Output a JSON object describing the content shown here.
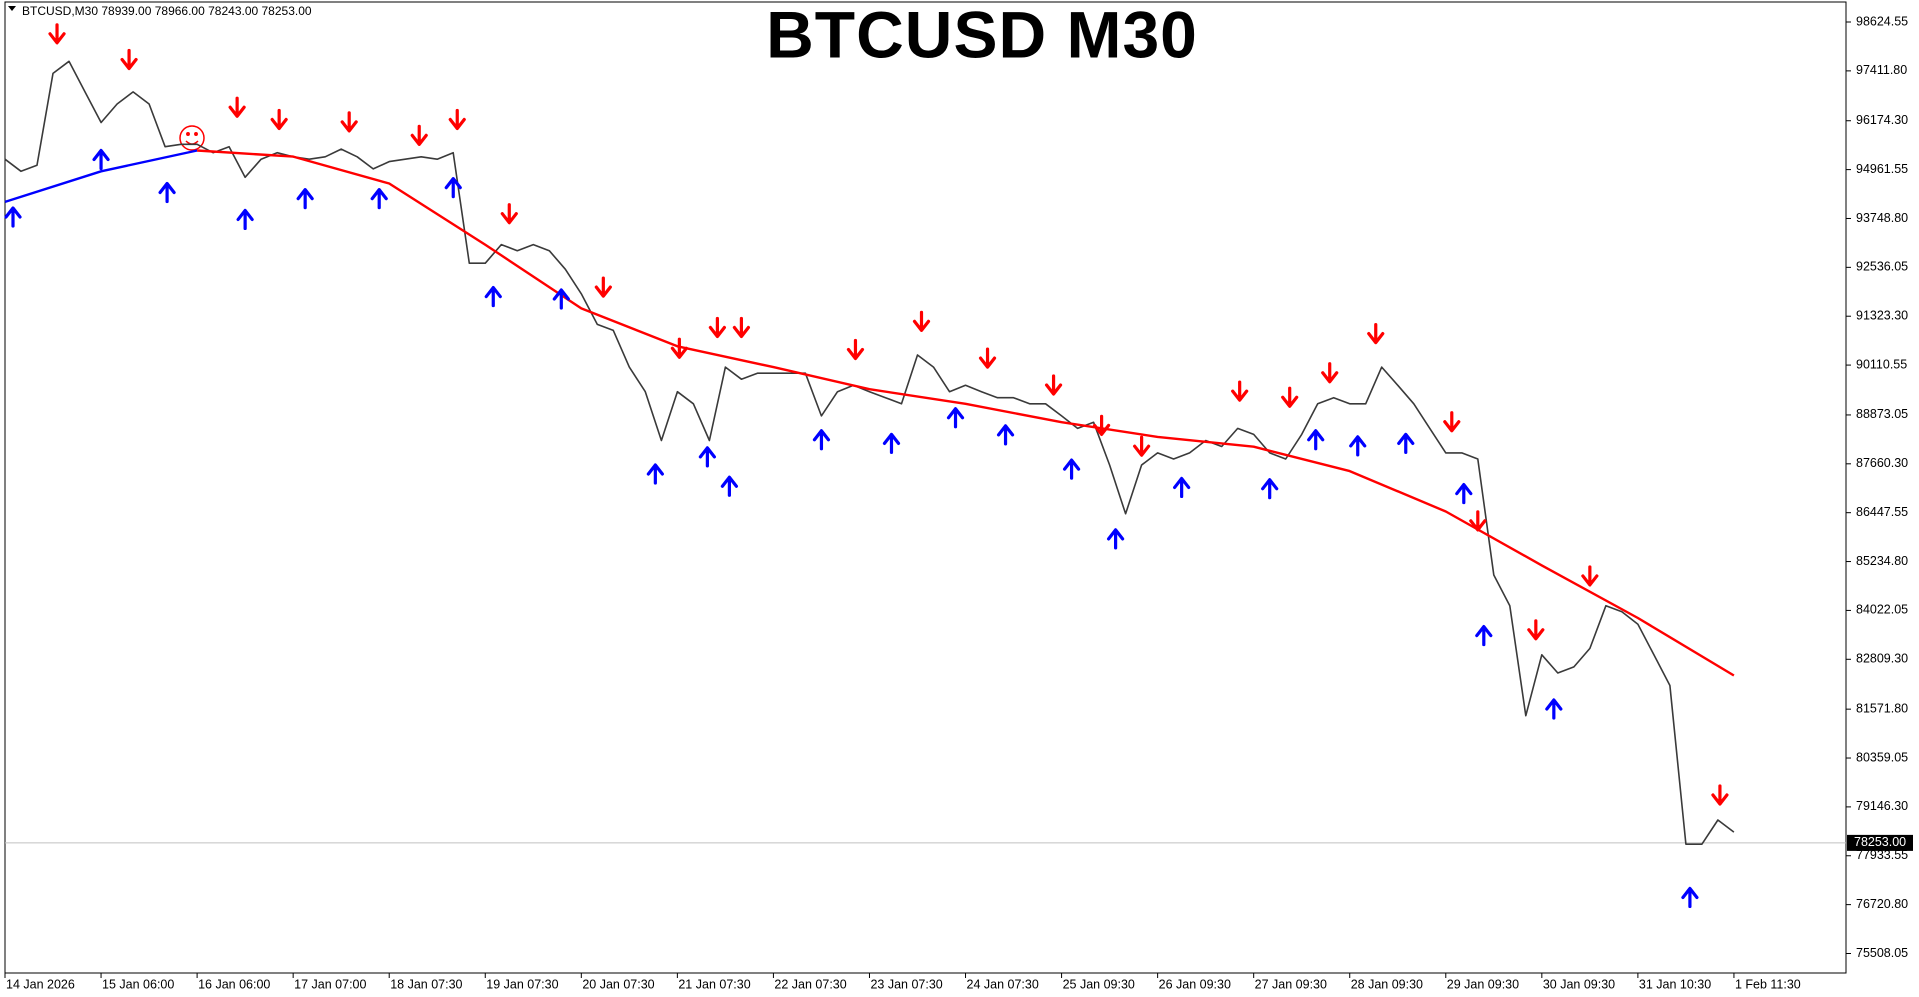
{
  "chart_data": {
    "type": "line",
    "title": "BTCUSD M30",
    "header": "BTCUSD,M30  78939.00 78966.00 78243.00 78253.00",
    "xlim": [
      0,
      920
    ],
    "ylim": [
      75024,
      99121
    ],
    "xticks": [
      {
        "value": 0,
        "label": "14 Jan 2026"
      },
      {
        "value": 48,
        "label": "15 Jan 06:00"
      },
      {
        "value": 96,
        "label": "16 Jan 06:00"
      },
      {
        "value": 144,
        "label": "17 Jan 07:00"
      },
      {
        "value": 192,
        "label": "18 Jan 07:30"
      },
      {
        "value": 240,
        "label": "19 Jan 07:30"
      },
      {
        "value": 288,
        "label": "20 Jan 07:30"
      },
      {
        "value": 336,
        "label": "21 Jan 07:30"
      },
      {
        "value": 384,
        "label": "22 Jan 07:30"
      },
      {
        "value": 432,
        "label": "23 Jan 07:30"
      },
      {
        "value": 480,
        "label": "24 Jan 07:30"
      },
      {
        "value": 528,
        "label": "25 Jan 09:30"
      },
      {
        "value": 576,
        "label": "26 Jan 09:30"
      },
      {
        "value": 624,
        "label": "27 Jan 09:30"
      },
      {
        "value": 672,
        "label": "28 Jan 09:30"
      },
      {
        "value": 720,
        "label": "29 Jan 09:30"
      },
      {
        "value": 768,
        "label": "30 Jan 09:30"
      },
      {
        "value": 816,
        "label": "31 Jan 10:30"
      },
      {
        "value": 864,
        "label": "1 Feb 11:30"
      }
    ],
    "yticks": [
      {
        "value": 98624.55,
        "label": "98624.55"
      },
      {
        "value": 97411.8,
        "label": "97411.80"
      },
      {
        "value": 96174.3,
        "label": "96174.30"
      },
      {
        "value": 94961.55,
        "label": "94961.55"
      },
      {
        "value": 93748.8,
        "label": "93748.80"
      },
      {
        "value": 92536.05,
        "label": "92536.05"
      },
      {
        "value": 91323.3,
        "label": "91323.30"
      },
      {
        "value": 90110.55,
        "label": "90110.55"
      },
      {
        "value": 88873.05,
        "label": "88873.05"
      },
      {
        "value": 87660.3,
        "label": "87660.30"
      },
      {
        "value": 86447.55,
        "label": "86447.55"
      },
      {
        "value": 85234.8,
        "label": "85234.80"
      },
      {
        "value": 84022.05,
        "label": "84022.05"
      },
      {
        "value": 82809.3,
        "label": "82809.30"
      },
      {
        "value": 81571.8,
        "label": "81571.80"
      },
      {
        "value": 80359.05,
        "label": "80359.05"
      },
      {
        "value": 79146.3,
        "label": "79146.30"
      },
      {
        "value": 77933.55,
        "label": "77933.55"
      },
      {
        "value": 76720.8,
        "label": "76720.80"
      },
      {
        "value": 75508.05,
        "label": "75508.05"
      }
    ],
    "current_price": {
      "value": 78253,
      "label": "78253.00"
    },
    "series": [
      {
        "color": "#3a3a3a",
        "width": 1.6,
        "x": [
          0,
          8,
          16,
          24,
          32,
          40,
          48,
          56,
          64,
          72,
          80,
          88,
          96,
          104,
          112,
          120,
          128,
          136,
          144,
          152,
          160,
          168,
          176,
          184,
          192,
          200,
          208,
          216,
          224,
          232,
          240,
          248,
          256,
          264,
          272,
          280,
          288,
          296,
          304,
          312,
          320,
          328,
          336,
          344,
          352,
          360,
          368,
          376,
          384,
          392,
          400,
          408,
          416,
          424,
          432,
          440,
          448,
          456,
          464,
          472,
          480,
          488,
          496,
          504,
          512,
          520,
          528,
          536,
          544,
          552,
          560,
          568,
          576,
          584,
          592,
          600,
          608,
          616,
          624,
          632,
          640,
          648,
          656,
          664,
          672,
          680,
          688,
          696,
          704,
          712,
          720,
          728,
          736,
          744,
          752,
          760,
          768,
          776,
          784,
          792,
          800,
          808,
          816,
          824,
          832,
          840,
          848,
          856,
          864
        ],
        "values": [
          95220,
          94920,
          95070,
          97350,
          97650,
          96890,
          96130,
          96590,
          96890,
          96590,
          95530,
          95590,
          95590,
          95380,
          95530,
          94770,
          95220,
          95380,
          95280,
          95220,
          95280,
          95470,
          95280,
          94980,
          95160,
          95220,
          95280,
          95220,
          95380,
          92640,
          92640,
          93100,
          92950,
          93100,
          92950,
          92490,
          91880,
          91120,
          90970,
          90060,
          89450,
          88240,
          89450,
          89150,
          88240,
          90060,
          89760,
          89910,
          89910,
          89910,
          89910,
          88850,
          89450,
          89610,
          89450,
          89300,
          89150,
          90360,
          90060,
          89450,
          89610,
          89450,
          89300,
          89300,
          89150,
          89150,
          88850,
          88540,
          88690,
          87630,
          86420,
          87630,
          87930,
          87780,
          87930,
          88240,
          88090,
          88540,
          88390,
          87930,
          87780,
          88390,
          89150,
          89300,
          89150,
          89150,
          90060,
          89610,
          89150,
          88540,
          87930,
          87930,
          87780,
          84900,
          84140,
          81410,
          82920,
          82470,
          82620,
          83080,
          84140,
          83990,
          83680,
          82920,
          82160,
          78220,
          78220,
          78820,
          78520
        ]
      },
      {
        "color": "#0000ff",
        "width": 2.4,
        "x": [
          0,
          48,
          96
        ],
        "values": [
          94160,
          94919,
          95436
        ]
      },
      {
        "color": "#ff0000",
        "width": 2.4,
        "x": [
          96,
          144,
          192,
          240,
          288,
          336,
          384,
          432,
          480,
          528,
          576,
          624,
          672,
          720,
          768,
          816,
          864
        ],
        "values": [
          95436,
          95284,
          94616,
          93097,
          91518,
          90577,
          90060,
          89513,
          89149,
          88694,
          88329,
          88086,
          87479,
          86477,
          85140,
          83834,
          82407
        ]
      }
    ],
    "signals": [
      {
        "direction": "down",
        "color": "#ff0000",
        "x": [
          26,
          62,
          116,
          137,
          172,
          207,
          226,
          252,
          299,
          337,
          356,
          368,
          425,
          458,
          491,
          524,
          548,
          568,
          617,
          642,
          662,
          685,
          723,
          736,
          765,
          792,
          857
        ],
        "values": [
          98108,
          97470,
          96286,
          95982,
          95922,
          95588,
          95982,
          93644,
          91822,
          90304,
          90820,
          90820,
          90273,
          90972,
          90060,
          89392,
          88390,
          87874,
          89240,
          89088,
          89696,
          90668,
          88481,
          86021,
          83318,
          84654,
          79218
        ]
      },
      {
        "direction": "up",
        "color": "#0000ff",
        "x": [
          4,
          48,
          81,
          120,
          150,
          187,
          224,
          244,
          278,
          325,
          351,
          362,
          408,
          443,
          475,
          500,
          533,
          555,
          588,
          632,
          655,
          676,
          700,
          729,
          739,
          774,
          842
        ],
        "values": [
          94008,
          95436,
          94616,
          93948,
          94464,
          94464,
          94737,
          92034,
          91974,
          87631,
          88056,
          87327,
          88481,
          88390,
          89027,
          88602,
          87752,
          86021,
          87297,
          87266,
          88481,
          88329,
          88390,
          87145,
          83621,
          81799,
          77122
        ]
      }
    ]
  }
}
